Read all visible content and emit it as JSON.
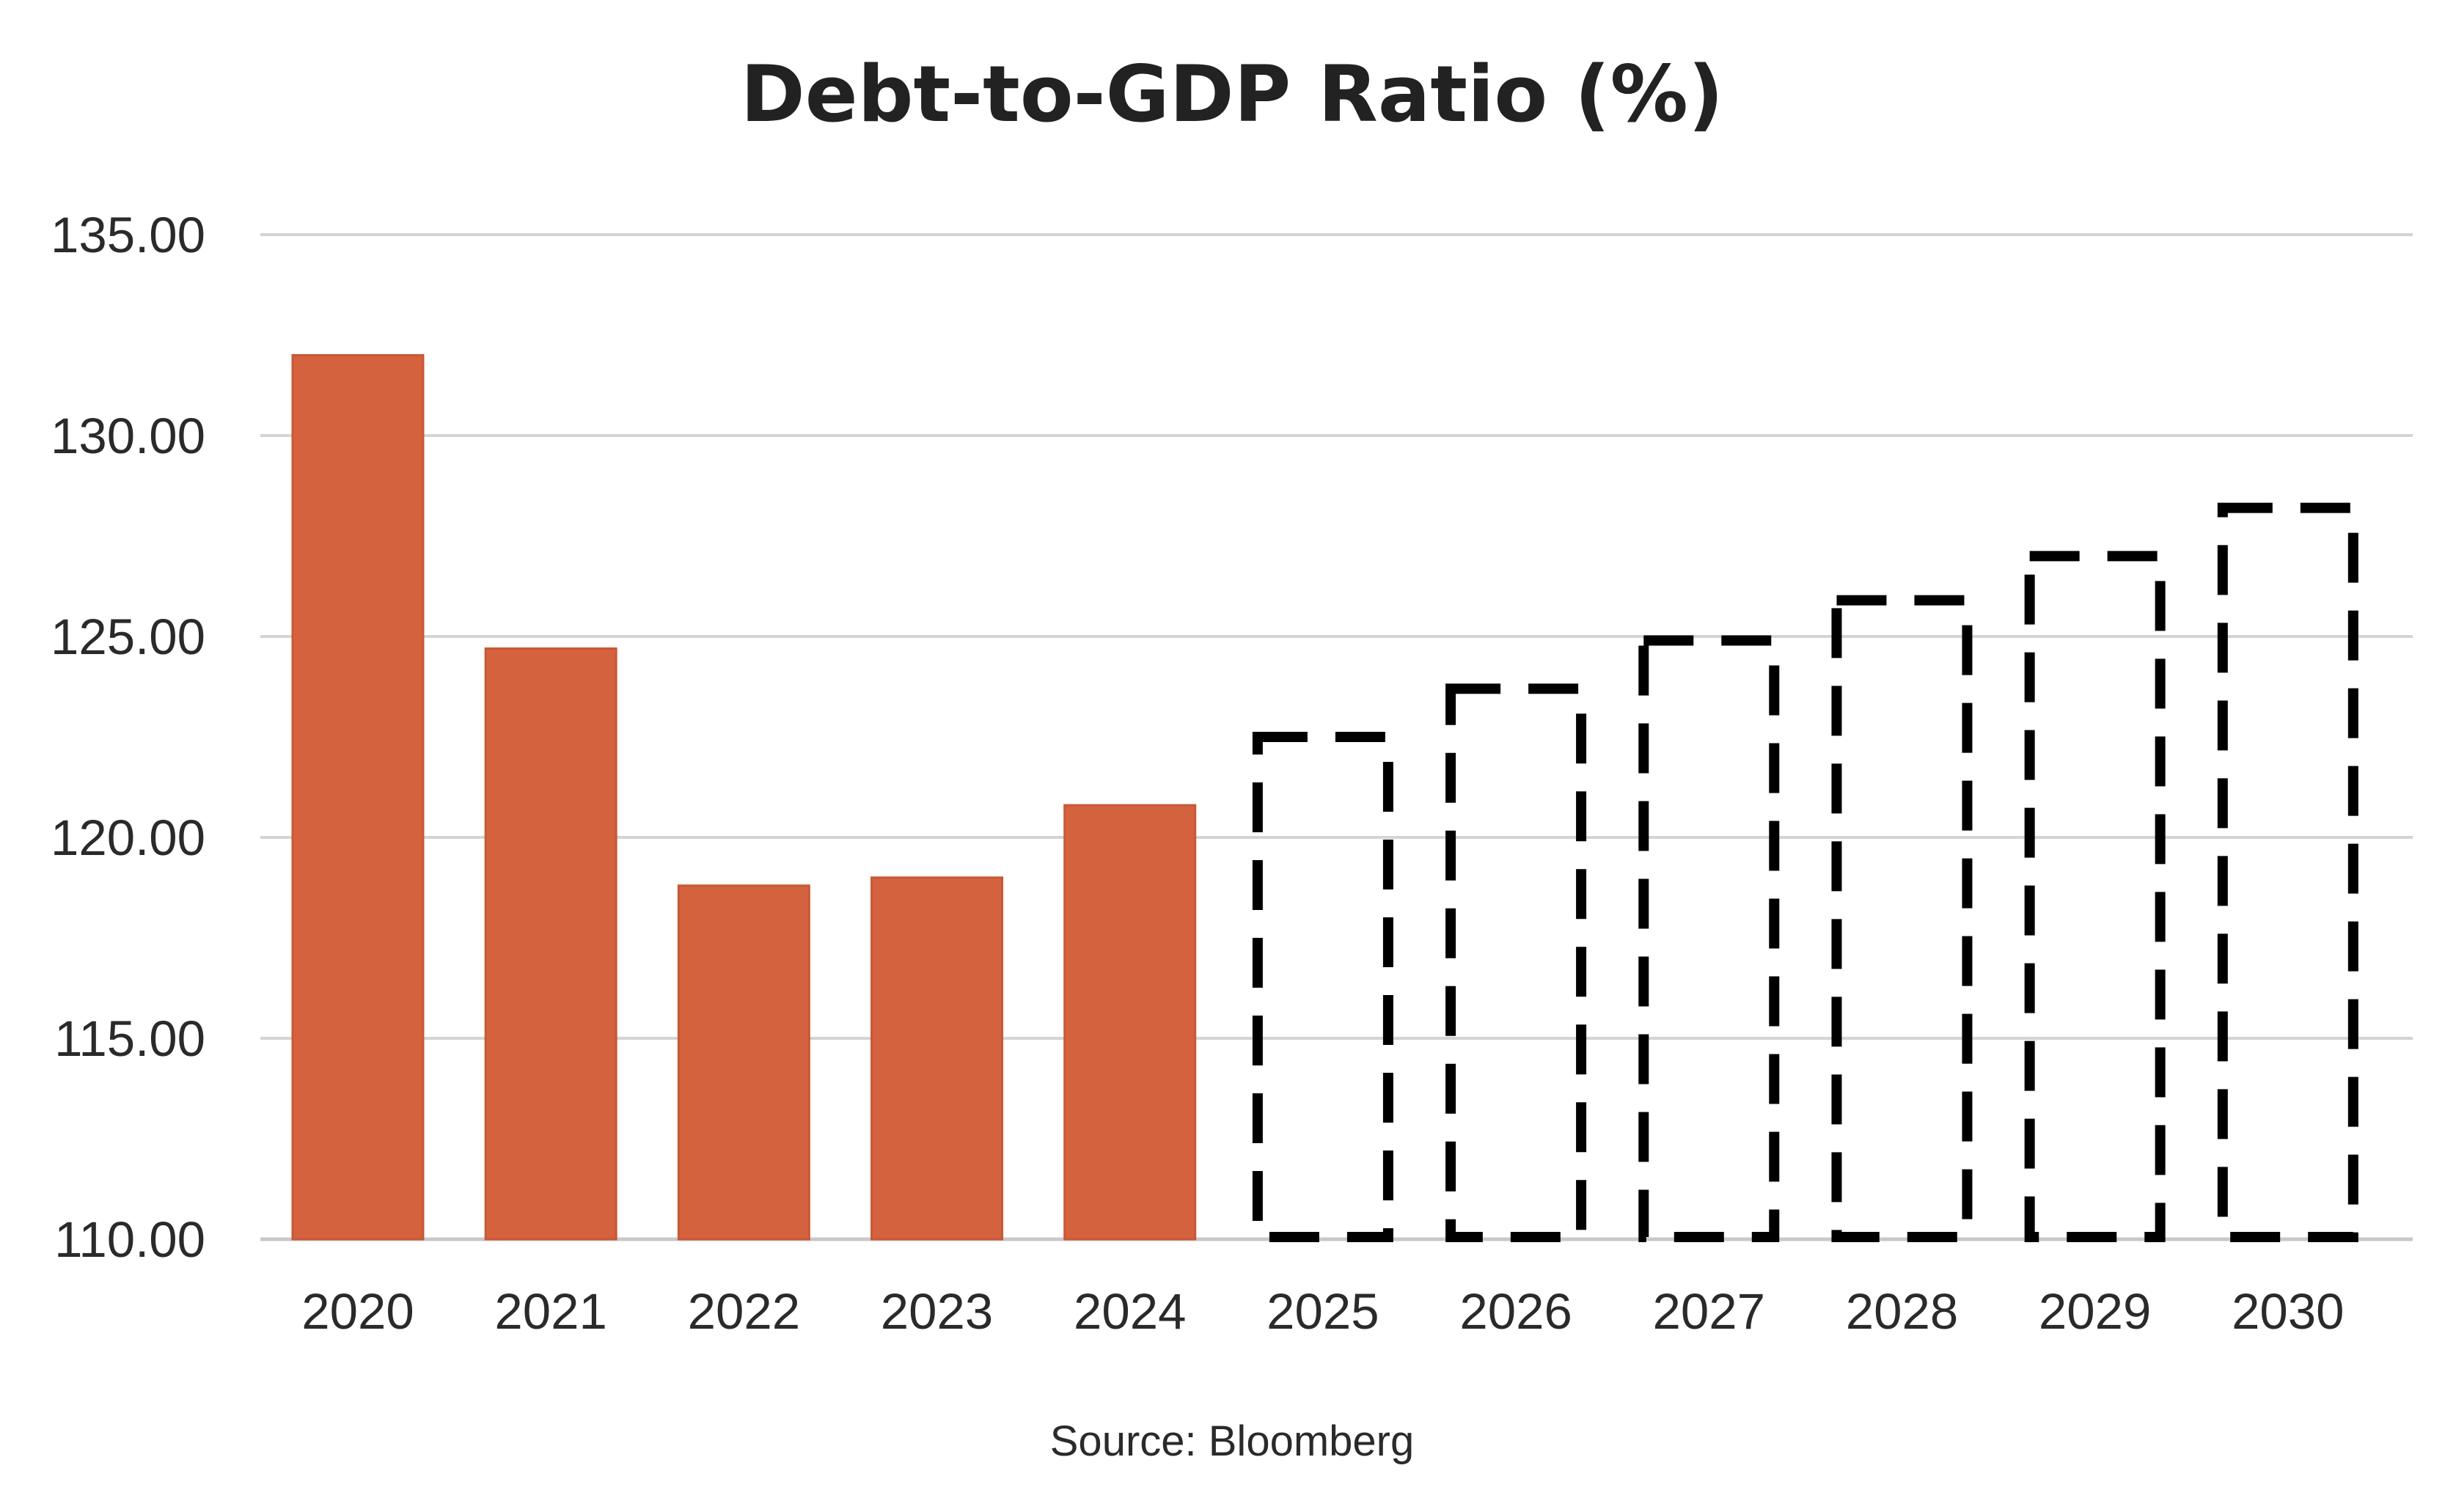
{
  "chart_data": {
    "type": "bar",
    "title": "Debt-to-GDP Ratio (%)",
    "xlabel": "",
    "ylabel": "",
    "categories": [
      "2020",
      "2021",
      "2022",
      "2023",
      "2024",
      "2025",
      "2026",
      "2027",
      "2028",
      "2029",
      "2030"
    ],
    "series": [
      {
        "values": [
          132.0,
          124.7,
          118.8,
          119.0,
          120.8,
          null,
          null,
          null,
          null,
          null,
          null
        ],
        "style": "solid",
        "color": "#D4623E"
      },
      {
        "values": [
          null,
          null,
          null,
          null,
          null,
          122.5,
          123.7,
          124.9,
          125.9,
          127.0,
          128.2
        ],
        "style": "dashed-outline",
        "color": "#000000"
      }
    ],
    "ylim": [
      110,
      135
    ],
    "yticks": [
      "110.00",
      "115.00",
      "120.00",
      "125.00",
      "130.00",
      "135.00"
    ],
    "grid": true,
    "legend": "none",
    "source": "Source: Bloomberg"
  }
}
